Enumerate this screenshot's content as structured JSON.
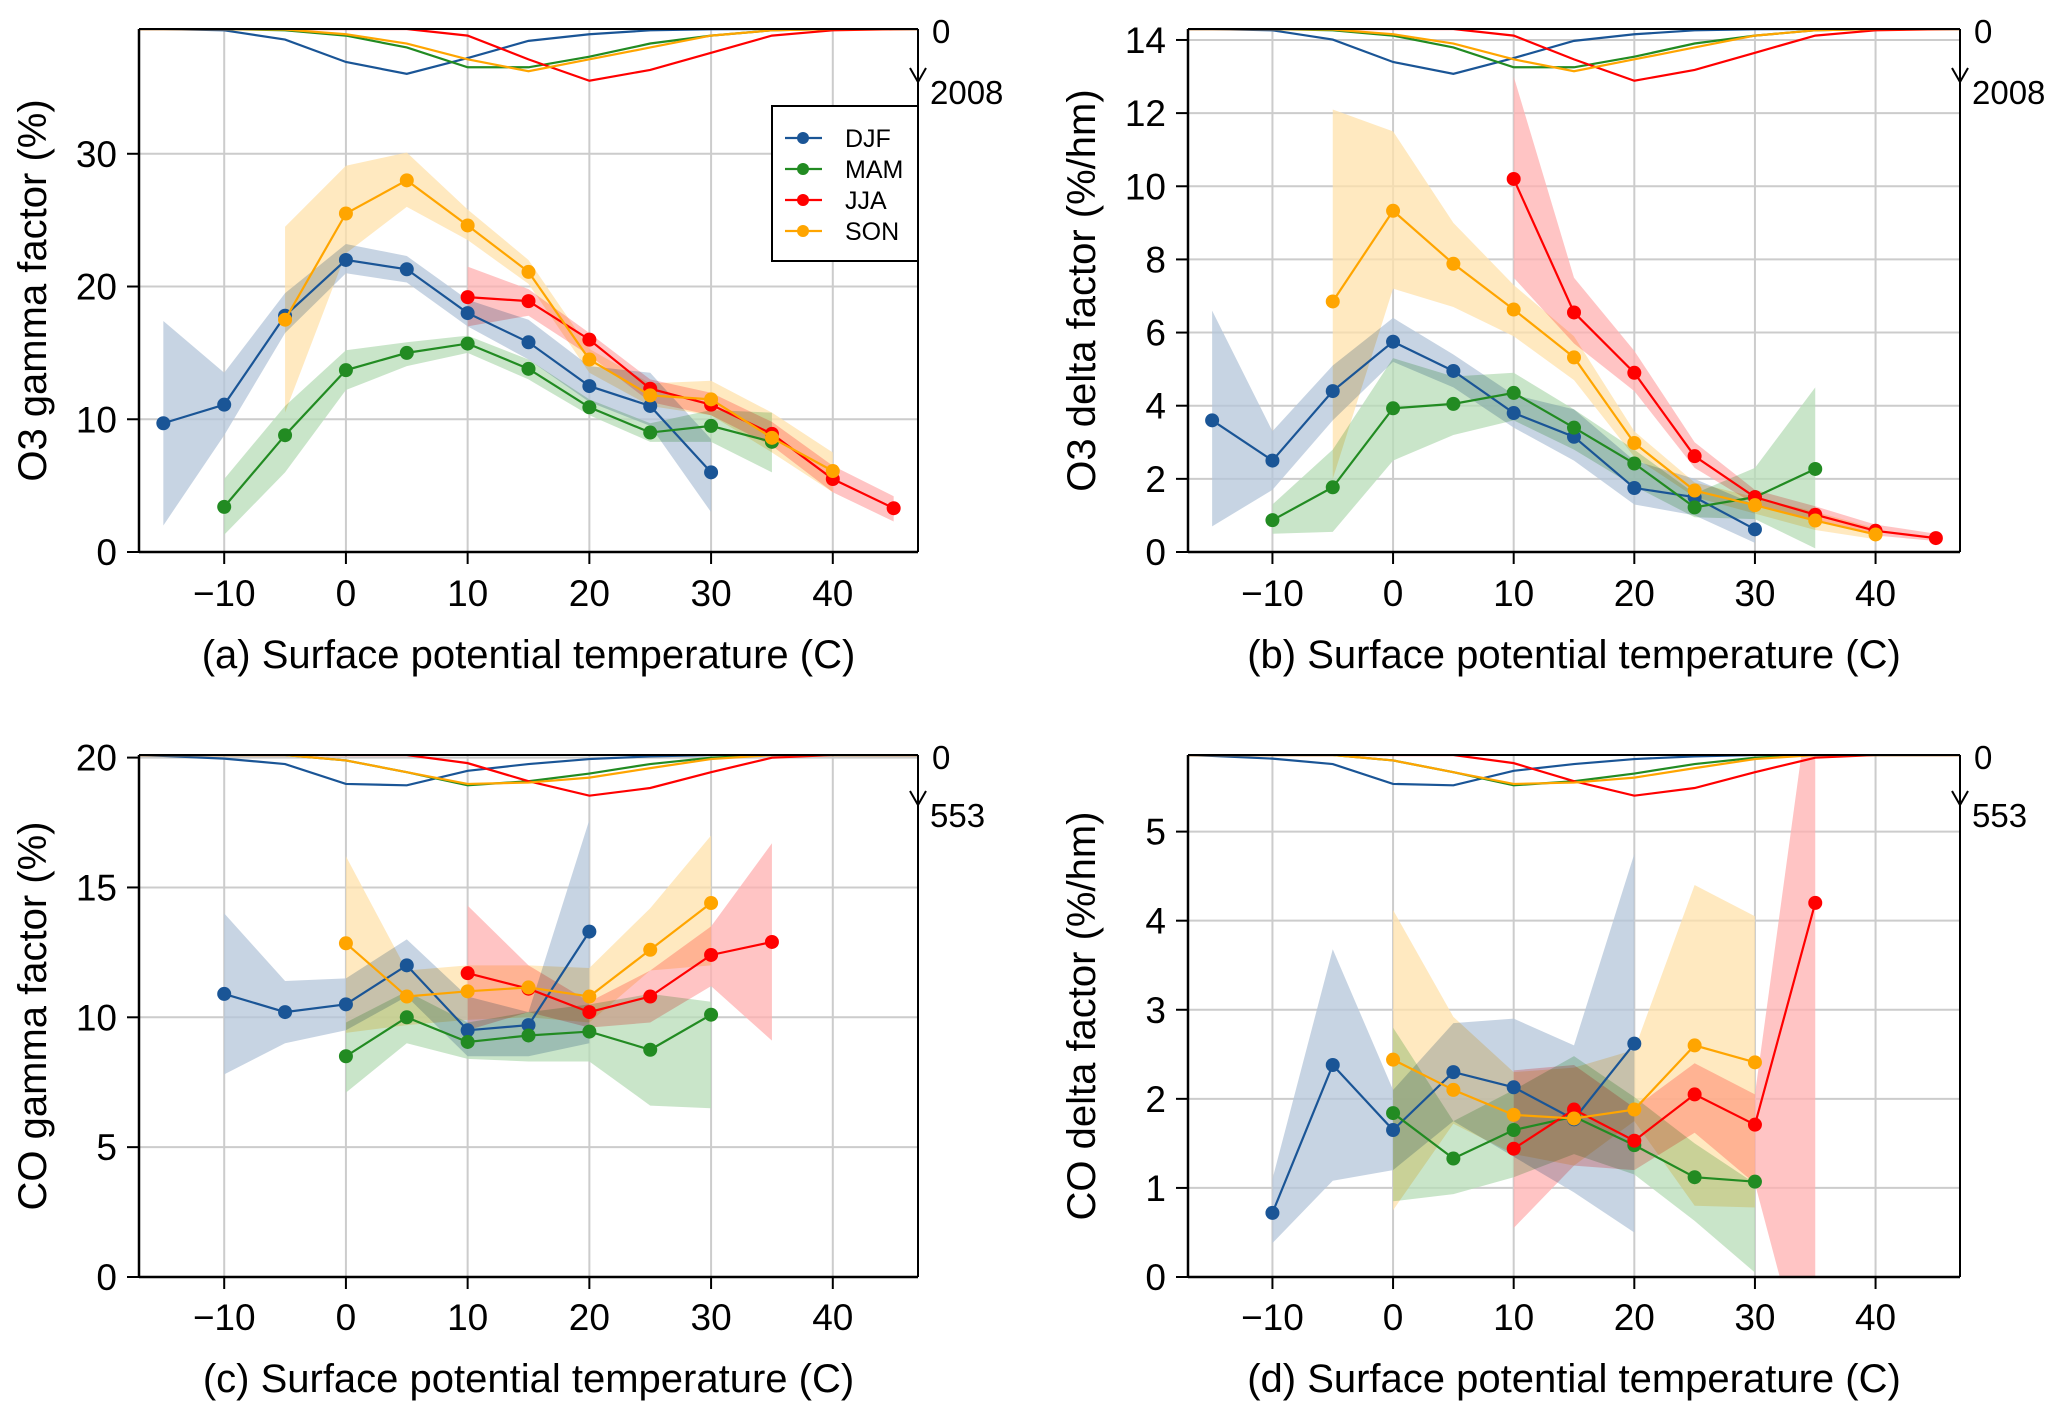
{
  "colors": {
    "DJF": "#1a5596",
    "MAM": "#228b22",
    "JJA": "#ff0000",
    "SON": "#ffa500"
  },
  "band_colors": {
    "DJF": "#b4c6da",
    "MAM": "#b7dcb7",
    "JJA": "#ffb0b0",
    "SON": "#ffe2ab"
  },
  "legend": [
    "DJF",
    "MAM",
    "JJA",
    "SON"
  ],
  "chart_data": [
    {
      "type": "line",
      "id": "a",
      "xlabel": "(a) Surface potential temperature (C)",
      "ylabel": "O3 gamma factor (%)",
      "xlim": [
        -17,
        47
      ],
      "ylim": [
        0,
        39.4
      ],
      "xticks": [
        -10,
        0,
        10,
        20,
        30,
        40
      ],
      "yticks": [
        0,
        10,
        20,
        30
      ],
      "grid": true,
      "legend_position": "top-right",
      "count_axis": {
        "max_label": "2008",
        "zero_label": "0",
        "max": 2008
      },
      "series": [
        {
          "name": "DJF",
          "x": [
            -15,
            -10,
            -5,
            0,
            5,
            10,
            15,
            20,
            25,
            30
          ],
          "y": [
            9.7,
            11.1,
            17.8,
            22.0,
            21.3,
            18.0,
            15.8,
            12.5,
            11.0,
            6.0
          ],
          "lo": [
            2,
            8.8,
            16.5,
            21,
            20.3,
            17,
            14.5,
            11.3,
            9.5,
            3
          ],
          "hi": [
            17.4,
            13.5,
            19.5,
            23.2,
            22.3,
            19,
            17.5,
            14,
            13.5,
            8.5
          ]
        },
        {
          "name": "MAM",
          "x": [
            -10,
            -5,
            0,
            5,
            10,
            15,
            20,
            25,
            30,
            35
          ],
          "y": [
            3.4,
            8.8,
            13.7,
            15.0,
            15.7,
            13.8,
            10.9,
            9.0,
            9.5,
            8.3
          ],
          "lo": [
            1.3,
            6,
            12.2,
            14,
            15,
            13,
            10.3,
            8.3,
            8.3,
            6
          ],
          "hi": [
            5.5,
            11,
            15.2,
            15.8,
            16.3,
            14.5,
            11.5,
            9.7,
            10.7,
            10.5
          ]
        },
        {
          "name": "JJA",
          "x": [
            10,
            15,
            20,
            25,
            30,
            35,
            40,
            45
          ],
          "y": [
            19.2,
            18.9,
            16.0,
            12.3,
            11.1,
            8.9,
            5.5,
            3.3
          ],
          "lo": [
            17,
            17.8,
            14.8,
            11.3,
            10.3,
            8,
            4.5,
            2.3
          ],
          "hi": [
            21.5,
            19.8,
            16.5,
            13,
            12,
            9.8,
            6.5,
            4.2
          ]
        },
        {
          "name": "SON",
          "x": [
            -5,
            0,
            5,
            10,
            15,
            20,
            25,
            30,
            35,
            40
          ],
          "y": [
            17.5,
            25.5,
            28.0,
            24.6,
            21.1,
            14.5,
            11.8,
            11.5,
            8.6,
            6.1
          ],
          "lo": [
            10.5,
            22.5,
            26,
            23.5,
            20.2,
            13.5,
            11,
            10.3,
            7.5,
            4.5
          ],
          "hi": [
            24.5,
            29.1,
            30.1,
            25.8,
            22,
            15.3,
            12.7,
            12.9,
            10.5,
            7.5
          ]
        }
      ],
      "counts": {
        "x": [
          -15,
          -10,
          -5,
          0,
          5,
          10,
          15,
          20,
          25,
          30,
          35,
          40,
          45
        ],
        "DJF": [
          0,
          50,
          400,
          1250,
          1700,
          1100,
          450,
          200,
          50,
          10,
          0,
          0,
          0
        ],
        "MAM": [
          0,
          0,
          50,
          250,
          700,
          1450,
          1450,
          1050,
          550,
          250,
          50,
          0,
          0
        ],
        "JJA": [
          0,
          0,
          0,
          0,
          0,
          250,
          1150,
          1960,
          1550,
          900,
          250,
          50,
          10
        ],
        "SON": [
          0,
          0,
          20,
          200,
          550,
          1150,
          1600,
          1150,
          700,
          250,
          50,
          0,
          0
        ]
      }
    },
    {
      "type": "line",
      "id": "b",
      "xlabel": "(b) Surface potential temperature (C)",
      "ylabel": "O3 delta factor (%/hm)",
      "xlim": [
        -17,
        47
      ],
      "ylim": [
        0,
        14.3
      ],
      "xticks": [
        -10,
        0,
        10,
        20,
        30,
        40
      ],
      "yticks": [
        0,
        2,
        4,
        6,
        8,
        10,
        12,
        14
      ],
      "grid": true,
      "count_axis": {
        "max_label": "2008",
        "zero_label": "0",
        "max": 2008
      },
      "series": [
        {
          "name": "DJF",
          "x": [
            -15,
            -10,
            -5,
            0,
            5,
            10,
            15,
            20,
            25,
            30
          ],
          "y": [
            3.6,
            2.5,
            4.4,
            5.75,
            4.95,
            3.8,
            3.15,
            1.75,
            1.5,
            0.62
          ],
          "lo": [
            0.7,
            1.7,
            3.6,
            5.2,
            4.5,
            3.4,
            2.5,
            1.3,
            1.0,
            0.25
          ],
          "hi": [
            6.6,
            3.3,
            5.1,
            6.4,
            5.4,
            4.3,
            3.9,
            2.5,
            2.0,
            1.3
          ]
        },
        {
          "name": "MAM",
          "x": [
            -10,
            -5,
            0,
            5,
            10,
            15,
            20,
            25,
            30,
            35
          ],
          "y": [
            0.87,
            1.77,
            3.93,
            4.05,
            4.35,
            3.4,
            2.42,
            1.22,
            1.5,
            2.27
          ],
          "lo": [
            0.5,
            0.55,
            2.5,
            3.2,
            3.6,
            2.8,
            1.8,
            0.95,
            0.9,
            0.1
          ],
          "hi": [
            1.3,
            2.8,
            5.3,
            4.8,
            4.9,
            3.9,
            2.8,
            1.6,
            2.3,
            4.5
          ]
        },
        {
          "name": "JJA",
          "x": [
            10,
            15,
            20,
            25,
            30,
            35,
            40,
            45
          ],
          "y": [
            10.2,
            6.55,
            4.9,
            2.62,
            1.5,
            1.02,
            0.58,
            0.38
          ],
          "lo": [
            7.5,
            5.7,
            4.4,
            2.3,
            1.3,
            0.85,
            0.45,
            0.3
          ],
          "hi": [
            13.0,
            7.5,
            5.5,
            3.0,
            1.7,
            1.25,
            0.75,
            0.5
          ]
        },
        {
          "name": "SON",
          "x": [
            -5,
            0,
            5,
            10,
            15,
            20,
            25,
            30,
            35,
            40
          ],
          "y": [
            6.85,
            9.33,
            7.88,
            6.63,
            5.32,
            2.98,
            1.68,
            1.28,
            0.86,
            0.48
          ],
          "lo": [
            2,
            7.2,
            6.7,
            5.9,
            4.7,
            2.6,
            1.5,
            1.05,
            0.6,
            0.35
          ],
          "hi": [
            12.1,
            11.5,
            9.0,
            7.3,
            5.9,
            3.3,
            1.9,
            1.5,
            1.1,
            0.65
          ]
        }
      ],
      "counts": {
        "x": [
          -15,
          -10,
          -5,
          0,
          5,
          10,
          15,
          20,
          25,
          30,
          35,
          40,
          45
        ],
        "DJF": [
          0,
          50,
          400,
          1250,
          1700,
          1100,
          450,
          200,
          50,
          10,
          0,
          0,
          0
        ],
        "MAM": [
          0,
          0,
          50,
          250,
          700,
          1450,
          1450,
          1050,
          550,
          250,
          50,
          0,
          0
        ],
        "JJA": [
          0,
          0,
          0,
          0,
          0,
          250,
          1150,
          1960,
          1550,
          900,
          250,
          50,
          10
        ],
        "SON": [
          0,
          0,
          20,
          200,
          550,
          1150,
          1600,
          1150,
          700,
          250,
          50,
          0,
          0
        ]
      }
    },
    {
      "type": "line",
      "id": "c",
      "xlabel": "(c) Surface potential temperature (C)",
      "ylabel": "CO gamma factor (%)",
      "xlim": [
        -17,
        47
      ],
      "ylim": [
        0,
        20.1
      ],
      "xticks": [
        -10,
        0,
        10,
        20,
        30,
        40
      ],
      "yticks": [
        0,
        5,
        10,
        15,
        20
      ],
      "grid": true,
      "count_axis": {
        "max_label": "553",
        "zero_label": "0",
        "max": 553
      },
      "series": [
        {
          "name": "DJF",
          "x": [
            -10,
            -5,
            0,
            5,
            10,
            15,
            20
          ],
          "y": [
            10.9,
            10.2,
            10.5,
            12.0,
            9.5,
            9.7,
            13.3
          ],
          "lo": [
            7.8,
            9,
            9.5,
            10.8,
            8.5,
            8.5,
            9.0
          ],
          "hi": [
            14,
            11.4,
            11.5,
            13,
            10.8,
            10.2,
            17.6
          ]
        },
        {
          "name": "MAM",
          "x": [
            0,
            5,
            10,
            15,
            20,
            25,
            30
          ],
          "y": [
            8.5,
            10.0,
            9.05,
            9.3,
            9.45,
            8.75,
            10.1
          ],
          "lo": [
            7.1,
            9,
            8.4,
            8.3,
            8.3,
            6.6,
            6.5
          ],
          "hi": [
            9.8,
            11,
            9.8,
            10.2,
            10.5,
            10.9,
            10.6
          ]
        },
        {
          "name": "JJA",
          "x": [
            10,
            15,
            20,
            25,
            30,
            35
          ],
          "y": [
            11.7,
            11.1,
            10.2,
            10.8,
            12.4,
            12.9
          ],
          "lo": [
            9.5,
            10.2,
            9.6,
            9.8,
            11.2,
            9.1
          ],
          "hi": [
            14.3,
            12,
            10.6,
            11.8,
            13.5,
            16.7
          ]
        },
        {
          "name": "SON",
          "x": [
            0,
            5,
            10,
            15,
            20,
            25,
            30
          ],
          "y": [
            12.85,
            10.8,
            11.0,
            11.15,
            10.8,
            12.6,
            14.4
          ],
          "lo": [
            9.4,
            9.7,
            9.9,
            10,
            9.8,
            11.8,
            12.0
          ],
          "hi": [
            16.2,
            11.8,
            12.0,
            12,
            11.9,
            14.2,
            17.0
          ]
        }
      ],
      "counts": {
        "x": [
          -15,
          -10,
          -5,
          0,
          5,
          10,
          15,
          20,
          25,
          30,
          35,
          40,
          45
        ],
        "DJF": [
          10,
          40,
          100,
          320,
          335,
          175,
          100,
          45,
          15,
          0,
          0,
          0,
          0
        ],
        "MAM": [
          0,
          0,
          0,
          60,
          190,
          335,
          290,
          205,
          100,
          30,
          0,
          0,
          0
        ],
        "JJA": [
          0,
          0,
          0,
          0,
          0,
          90,
          290,
          450,
          365,
          190,
          30,
          0,
          0
        ],
        "SON": [
          0,
          0,
          0,
          60,
          190,
          320,
          305,
          250,
          145,
          45,
          0,
          0,
          0
        ]
      }
    },
    {
      "type": "line",
      "id": "d",
      "xlabel": "(d) Surface potential temperature (C)",
      "ylabel": "CO delta factor (%/hm)",
      "xlim": [
        -17,
        47
      ],
      "ylim": [
        0,
        5.86
      ],
      "xticks": [
        -10,
        0,
        10,
        20,
        30,
        40
      ],
      "yticks": [
        0,
        1,
        2,
        3,
        4,
        5
      ],
      "grid": true,
      "count_axis": {
        "max_label": "553",
        "zero_label": "0",
        "max": 553
      },
      "series": [
        {
          "name": "DJF",
          "x": [
            -10,
            -5,
            0,
            5,
            10,
            15,
            20
          ],
          "y": [
            0.72,
            2.38,
            1.65,
            2.3,
            2.13,
            1.77,
            2.62
          ],
          "lo": [
            0.38,
            1.08,
            1.2,
            1.75,
            1.35,
            0.95,
            0.5
          ],
          "hi": [
            1.1,
            3.68,
            2.1,
            2.85,
            2.9,
            2.6,
            4.75
          ]
        },
        {
          "name": "MAM",
          "x": [
            0,
            5,
            10,
            15,
            20,
            25,
            30
          ],
          "y": [
            1.84,
            1.33,
            1.65,
            1.8,
            1.48,
            1.12,
            1.07
          ],
          "lo": [
            0.85,
            0.93,
            1.12,
            1.38,
            1.15,
            0.63,
            0.05
          ],
          "hi": [
            2.8,
            1.75,
            2.1,
            2.48,
            2.02,
            1.5,
            1.05
          ]
        },
        {
          "name": "JJA",
          "x": [
            10,
            15,
            20,
            25,
            30,
            35
          ],
          "y": [
            1.44,
            1.88,
            1.53,
            2.05,
            1.71,
            4.2
          ],
          "lo": [
            0.55,
            1.25,
            1.2,
            1.62,
            1.05,
            -1.5
          ],
          "hi": [
            2.32,
            2.38,
            1.9,
            2.4,
            2.05,
            7.0
          ]
        },
        {
          "name": "SON",
          "x": [
            0,
            5,
            10,
            15,
            20,
            25,
            30
          ],
          "y": [
            2.44,
            2.1,
            1.82,
            1.78,
            1.88,
            2.6,
            2.41
          ],
          "lo": [
            0.75,
            1.72,
            1.38,
            1.25,
            1.75,
            0.8,
            0.78
          ],
          "hi": [
            4.12,
            2.92,
            2.3,
            2.35,
            2.55,
            4.4,
            4.05
          ]
        }
      ],
      "counts": {
        "x": [
          -15,
          -10,
          -5,
          0,
          5,
          10,
          15,
          20,
          25,
          30,
          35,
          40,
          45
        ],
        "DJF": [
          10,
          40,
          100,
          320,
          335,
          175,
          100,
          45,
          15,
          0,
          0,
          0,
          0
        ],
        "MAM": [
          0,
          0,
          0,
          60,
          190,
          335,
          290,
          205,
          100,
          30,
          0,
          0,
          0
        ],
        "JJA": [
          0,
          0,
          0,
          0,
          0,
          90,
          290,
          450,
          365,
          190,
          30,
          0,
          0
        ],
        "SON": [
          0,
          0,
          0,
          60,
          190,
          320,
          305,
          250,
          145,
          45,
          0,
          0,
          0
        ]
      }
    }
  ]
}
